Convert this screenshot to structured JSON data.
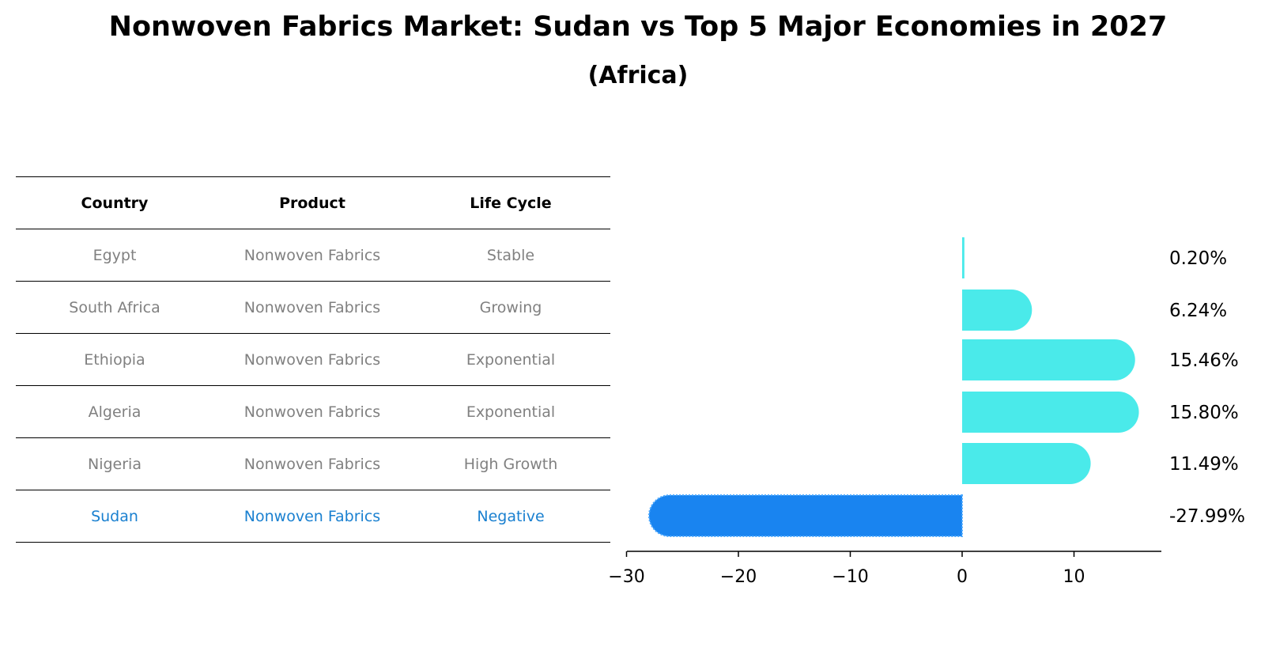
{
  "title": "Nonwoven Fabrics Market: Sudan vs Top 5 Major Economies in 2027",
  "subtitle": "(Africa)",
  "table": {
    "headers": [
      "Country",
      "Product",
      "Life Cycle"
    ],
    "rows": [
      [
        "Egypt",
        "Nonwoven Fabrics",
        "Stable"
      ],
      [
        "South Africa",
        "Nonwoven Fabrics",
        "Growing"
      ],
      [
        "Ethiopia",
        "Nonwoven Fabrics",
        "Exponential"
      ],
      [
        "Algeria",
        "Nonwoven Fabrics",
        "Exponential"
      ],
      [
        "Nigeria",
        "Nonwoven Fabrics",
        "High Growth"
      ],
      [
        "Sudan",
        "Nonwoven Fabrics",
        "Negative"
      ]
    ]
  },
  "chart_data": {
    "type": "bar",
    "orientation": "horizontal",
    "categories": [
      "Egypt",
      "South Africa",
      "Ethiopia",
      "Algeria",
      "Nigeria",
      "Sudan"
    ],
    "values": [
      0.2,
      6.24,
      15.46,
      15.8,
      11.49,
      -27.99
    ],
    "value_labels": [
      "0.20%",
      "6.24%",
      "15.46%",
      "15.80%",
      "11.49%",
      "-27.99%"
    ],
    "xlim": [
      -30,
      18
    ],
    "xticks": [
      -30,
      -20,
      -10,
      0,
      10
    ],
    "xtick_labels": [
      "−30",
      "−20",
      "−10",
      "0",
      "10"
    ],
    "colors": {
      "positive": "#4aeaea",
      "highlight": "#1984f0"
    },
    "highlight_category": "Sudan"
  }
}
